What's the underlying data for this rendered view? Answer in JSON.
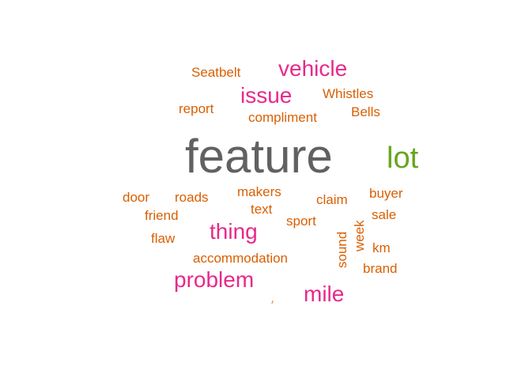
{
  "colors": {
    "gray": "#616161",
    "green": "#66a61e",
    "magenta": "#e7298a",
    "orange": "#d95f02"
  },
  "words": [
    {
      "text": "feature",
      "color": "gray"
    },
    {
      "text": "lot",
      "color": "green"
    },
    {
      "text": "vehicle",
      "color": "magenta"
    },
    {
      "text": "issue",
      "color": "magenta"
    },
    {
      "text": "thing",
      "color": "magenta"
    },
    {
      "text": "problem",
      "color": "magenta"
    },
    {
      "text": "mile",
      "color": "magenta"
    },
    {
      "text": "Seatbelt",
      "color": "orange"
    },
    {
      "text": "Whistles",
      "color": "orange"
    },
    {
      "text": "report",
      "color": "orange"
    },
    {
      "text": "Bells",
      "color": "orange"
    },
    {
      "text": "compliment",
      "color": "orange"
    },
    {
      "text": "door",
      "color": "orange"
    },
    {
      "text": "roads",
      "color": "orange"
    },
    {
      "text": "makers",
      "color": "orange"
    },
    {
      "text": "claim",
      "color": "orange"
    },
    {
      "text": "buyer",
      "color": "orange"
    },
    {
      "text": "friend",
      "color": "orange"
    },
    {
      "text": "text",
      "color": "orange"
    },
    {
      "text": "sport",
      "color": "orange"
    },
    {
      "text": "sale",
      "color": "orange"
    },
    {
      "text": "week",
      "color": "orange"
    },
    {
      "text": "flaw",
      "color": "orange"
    },
    {
      "text": "sound",
      "color": "orange"
    },
    {
      "text": "km",
      "color": "orange"
    },
    {
      "text": "accommodation",
      "color": "orange"
    },
    {
      "text": "brand",
      "color": "orange"
    }
  ]
}
